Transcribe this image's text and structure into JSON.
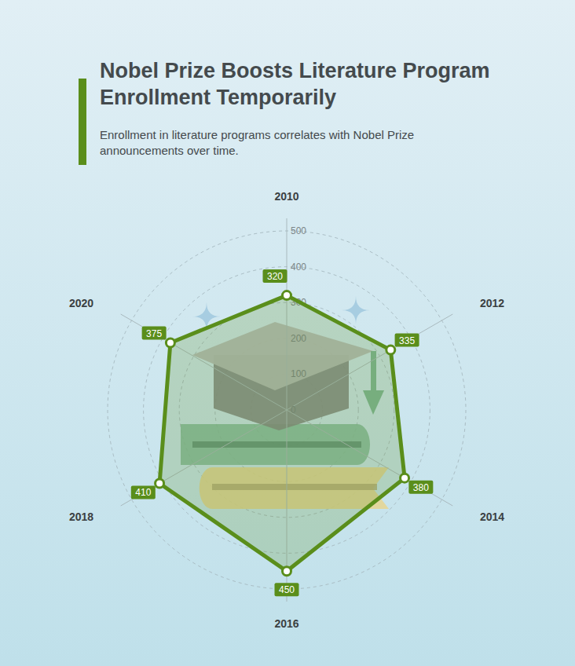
{
  "chart_data": {
    "type": "radar",
    "title": "Nobel Prize Boosts Literature Program Enrollment Temporarily",
    "subtitle": "Enrollment in literature programs correlates with Nobel Prize announcements over time.",
    "categories": [
      "2010",
      "2012",
      "2014",
      "2016",
      "2018",
      "2020"
    ],
    "values": [
      320,
      335,
      380,
      450,
      410,
      375
    ],
    "color": "#5a8e1b",
    "ylim": [
      0,
      500
    ],
    "yticks": [
      0,
      100,
      200,
      300,
      400,
      500
    ],
    "grid": true,
    "data_labels": true
  }
}
